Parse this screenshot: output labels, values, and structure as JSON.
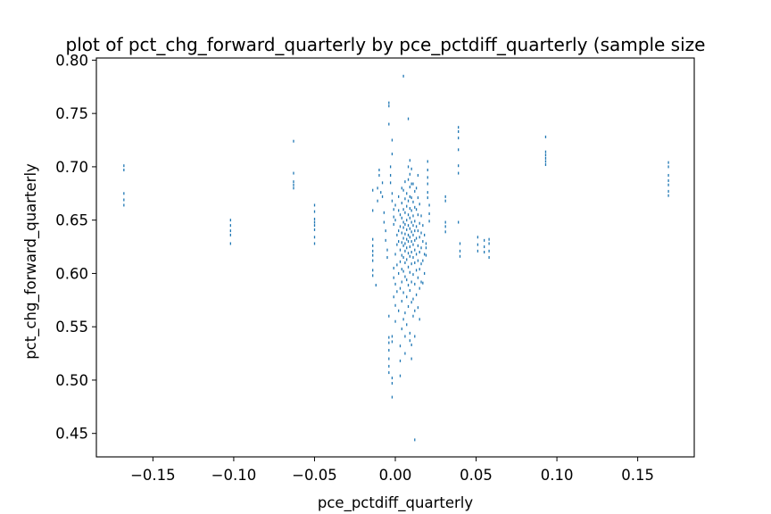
{
  "chart_data": {
    "type": "scatter",
    "title": "plot of pct_chg_forward_quarterly by pce_pctdiff_quarterly (sample size",
    "xlabel": "pce_pctdiff_quarterly",
    "ylabel": "pct_chg_forward_quarterly",
    "xlim": [
      -0.185,
      0.185
    ],
    "ylim": [
      0.428,
      0.802
    ],
    "x_ticks": [
      -0.15,
      -0.1,
      -0.05,
      0.0,
      0.05,
      0.1,
      0.15
    ],
    "x_tick_labels": [
      "−0.15",
      "−0.10",
      "−0.05",
      "0.00",
      "0.05",
      "0.10",
      "0.15"
    ],
    "y_ticks": [
      0.45,
      0.5,
      0.55,
      0.6,
      0.65,
      0.7,
      0.75,
      0.8
    ],
    "y_tick_labels": [
      "0.45",
      "0.50",
      "0.55",
      "0.60",
      "0.65",
      "0.70",
      "0.75",
      "0.80"
    ],
    "grid": false,
    "marker": "pixel",
    "color": "#1f77b4",
    "series": [
      {
        "points": [
          [
            -0.168,
            0.701
          ],
          [
            -0.168,
            0.697
          ],
          [
            -0.168,
            0.675
          ],
          [
            -0.168,
            0.669
          ],
          [
            -0.168,
            0.664
          ],
          [
            -0.102,
            0.65
          ],
          [
            -0.102,
            0.645
          ],
          [
            -0.102,
            0.64
          ],
          [
            -0.102,
            0.636
          ],
          [
            -0.102,
            0.628
          ],
          [
            -0.063,
            0.724
          ],
          [
            -0.063,
            0.694
          ],
          [
            -0.063,
            0.686
          ],
          [
            -0.063,
            0.683
          ],
          [
            -0.063,
            0.68
          ],
          [
            -0.05,
            0.664
          ],
          [
            -0.05,
            0.658
          ],
          [
            -0.05,
            0.651
          ],
          [
            -0.05,
            0.648
          ],
          [
            -0.05,
            0.645
          ],
          [
            -0.05,
            0.641
          ],
          [
            -0.05,
            0.634
          ],
          [
            -0.05,
            0.628
          ],
          [
            -0.014,
            0.678
          ],
          [
            -0.014,
            0.659
          ],
          [
            -0.014,
            0.632
          ],
          [
            -0.014,
            0.626
          ],
          [
            -0.014,
            0.621
          ],
          [
            -0.014,
            0.617
          ],
          [
            -0.014,
            0.612
          ],
          [
            -0.014,
            0.603
          ],
          [
            -0.014,
            0.598
          ],
          [
            -0.012,
            0.589
          ],
          [
            -0.011,
            0.668
          ],
          [
            -0.011,
            0.68
          ],
          [
            -0.01,
            0.692
          ],
          [
            -0.01,
            0.697
          ],
          [
            -0.009,
            0.676
          ],
          [
            -0.008,
            0.685
          ],
          [
            -0.008,
            0.672
          ],
          [
            -0.007,
            0.657
          ],
          [
            -0.007,
            0.648
          ],
          [
            -0.006,
            0.64
          ],
          [
            -0.006,
            0.631
          ],
          [
            -0.005,
            0.622
          ],
          [
            -0.005,
            0.615
          ],
          [
            -0.004,
            0.56
          ],
          [
            -0.004,
            0.54
          ],
          [
            -0.004,
            0.535
          ],
          [
            -0.004,
            0.528
          ],
          [
            -0.004,
            0.52
          ],
          [
            -0.004,
            0.513
          ],
          [
            -0.004,
            0.507
          ],
          [
            -0.004,
            0.74
          ],
          [
            -0.004,
            0.76
          ],
          [
            -0.004,
            0.757
          ],
          [
            -0.003,
            0.7
          ],
          [
            -0.003,
            0.692
          ],
          [
            -0.003,
            0.685
          ],
          [
            -0.002,
            0.668
          ],
          [
            -0.002,
            0.675
          ],
          [
            -0.002,
            0.712
          ],
          [
            -0.002,
            0.725
          ],
          [
            -0.002,
            0.502
          ],
          [
            -0.002,
            0.497
          ],
          [
            -0.002,
            0.484
          ],
          [
            -0.002,
            0.536
          ],
          [
            -0.002,
            0.541
          ],
          [
            -0.001,
            0.66
          ],
          [
            -0.001,
            0.653
          ],
          [
            -0.001,
            0.646
          ],
          [
            -0.001,
            0.605
          ],
          [
            -0.001,
            0.596
          ],
          [
            -0.001,
            0.578
          ],
          [
            0.0,
            0.618
          ],
          [
            0.0,
            0.65
          ],
          [
            0.0,
            0.664
          ],
          [
            0.0,
            0.59
          ],
          [
            0.0,
            0.57
          ],
          [
            0.0,
            0.555
          ],
          [
            0.001,
            0.636
          ],
          [
            0.001,
            0.627
          ],
          [
            0.001,
            0.608
          ],
          [
            0.001,
            0.583
          ],
          [
            0.002,
            0.672
          ],
          [
            0.002,
            0.659
          ],
          [
            0.002,
            0.64
          ],
          [
            0.002,
            0.63
          ],
          [
            0.002,
            0.6
          ],
          [
            0.002,
            0.565
          ],
          [
            0.003,
            0.655
          ],
          [
            0.003,
            0.644
          ],
          [
            0.003,
            0.622
          ],
          [
            0.003,
            0.611
          ],
          [
            0.003,
            0.586
          ],
          [
            0.003,
            0.532
          ],
          [
            0.003,
            0.518
          ],
          [
            0.003,
            0.504
          ],
          [
            0.004,
            0.68
          ],
          [
            0.004,
            0.666
          ],
          [
            0.004,
            0.652
          ],
          [
            0.004,
            0.638
          ],
          [
            0.004,
            0.629
          ],
          [
            0.004,
            0.617
          ],
          [
            0.004,
            0.604
          ],
          [
            0.004,
            0.592
          ],
          [
            0.004,
            0.574
          ],
          [
            0.004,
            0.548
          ],
          [
            0.005,
            0.678
          ],
          [
            0.005,
            0.66
          ],
          [
            0.005,
            0.648
          ],
          [
            0.005,
            0.643
          ],
          [
            0.005,
            0.633
          ],
          [
            0.005,
            0.626
          ],
          [
            0.005,
            0.615
          ],
          [
            0.005,
            0.602
          ],
          [
            0.005,
            0.582
          ],
          [
            0.005,
            0.557
          ],
          [
            0.005,
            0.785
          ],
          [
            0.006,
            0.686
          ],
          [
            0.006,
            0.67
          ],
          [
            0.006,
            0.657
          ],
          [
            0.006,
            0.646
          ],
          [
            0.006,
            0.637
          ],
          [
            0.006,
            0.628
          ],
          [
            0.006,
            0.621
          ],
          [
            0.006,
            0.61
          ],
          [
            0.006,
            0.597
          ],
          [
            0.006,
            0.563
          ],
          [
            0.006,
            0.541
          ],
          [
            0.006,
            0.525
          ],
          [
            0.007,
            0.675
          ],
          [
            0.007,
            0.663
          ],
          [
            0.007,
            0.65
          ],
          [
            0.007,
            0.641
          ],
          [
            0.007,
            0.632
          ],
          [
            0.007,
            0.624
          ],
          [
            0.007,
            0.613
          ],
          [
            0.007,
            0.594
          ],
          [
            0.007,
            0.578
          ],
          [
            0.007,
            0.552
          ],
          [
            0.008,
            0.7
          ],
          [
            0.008,
            0.688
          ],
          [
            0.008,
            0.668
          ],
          [
            0.008,
            0.655
          ],
          [
            0.008,
            0.645
          ],
          [
            0.008,
            0.636
          ],
          [
            0.008,
            0.63
          ],
          [
            0.008,
            0.619
          ],
          [
            0.008,
            0.606
          ],
          [
            0.008,
            0.589
          ],
          [
            0.008,
            0.569
          ],
          [
            0.008,
            0.745
          ],
          [
            0.009,
            0.706
          ],
          [
            0.009,
            0.693
          ],
          [
            0.009,
            0.681
          ],
          [
            0.009,
            0.672
          ],
          [
            0.009,
            0.661
          ],
          [
            0.009,
            0.652
          ],
          [
            0.009,
            0.642
          ],
          [
            0.009,
            0.634
          ],
          [
            0.009,
            0.625
          ],
          [
            0.009,
            0.616
          ],
          [
            0.009,
            0.601
          ],
          [
            0.009,
            0.584
          ],
          [
            0.009,
            0.544
          ],
          [
            0.009,
            0.537
          ],
          [
            0.01,
            0.698
          ],
          [
            0.01,
            0.684
          ],
          [
            0.01,
            0.671
          ],
          [
            0.01,
            0.659
          ],
          [
            0.01,
            0.648
          ],
          [
            0.01,
            0.639
          ],
          [
            0.01,
            0.63
          ],
          [
            0.01,
            0.62
          ],
          [
            0.01,
            0.609
          ],
          [
            0.01,
            0.592
          ],
          [
            0.01,
            0.573
          ],
          [
            0.01,
            0.533
          ],
          [
            0.01,
            0.52
          ],
          [
            0.011,
            0.684
          ],
          [
            0.011,
            0.667
          ],
          [
            0.011,
            0.654
          ],
          [
            0.011,
            0.645
          ],
          [
            0.011,
            0.636
          ],
          [
            0.011,
            0.627
          ],
          [
            0.011,
            0.615
          ],
          [
            0.011,
            0.599
          ],
          [
            0.011,
            0.576
          ],
          [
            0.011,
            0.56
          ],
          [
            0.012,
            0.677
          ],
          [
            0.012,
            0.662
          ],
          [
            0.012,
            0.649
          ],
          [
            0.012,
            0.64
          ],
          [
            0.012,
            0.631
          ],
          [
            0.012,
            0.622
          ],
          [
            0.012,
            0.61
          ],
          [
            0.012,
            0.59
          ],
          [
            0.012,
            0.565
          ],
          [
            0.012,
            0.541
          ],
          [
            0.012,
            0.444
          ],
          [
            0.013,
            0.68
          ],
          [
            0.013,
            0.66
          ],
          [
            0.013,
            0.644
          ],
          [
            0.013,
            0.633
          ],
          [
            0.013,
            0.618
          ],
          [
            0.013,
            0.603
          ],
          [
            0.013,
            0.58
          ],
          [
            0.014,
            0.692
          ],
          [
            0.014,
            0.671
          ],
          [
            0.014,
            0.655
          ],
          [
            0.014,
            0.64
          ],
          [
            0.014,
            0.626
          ],
          [
            0.014,
            0.612
          ],
          [
            0.014,
            0.596
          ],
          [
            0.014,
            0.568
          ],
          [
            0.015,
            0.665
          ],
          [
            0.015,
            0.647
          ],
          [
            0.015,
            0.634
          ],
          [
            0.015,
            0.62
          ],
          [
            0.015,
            0.604
          ],
          [
            0.015,
            0.586
          ],
          [
            0.015,
            0.557
          ],
          [
            0.016,
            0.654
          ],
          [
            0.016,
            0.638
          ],
          [
            0.016,
            0.624
          ],
          [
            0.016,
            0.609
          ],
          [
            0.016,
            0.592
          ],
          [
            0.017,
            0.645
          ],
          [
            0.017,
            0.63
          ],
          [
            0.017,
            0.612
          ],
          [
            0.017,
            0.591
          ],
          [
            0.018,
            0.636
          ],
          [
            0.018,
            0.618
          ],
          [
            0.018,
            0.6
          ],
          [
            0.019,
            0.628
          ],
          [
            0.019,
            0.624
          ],
          [
            0.019,
            0.617
          ],
          [
            0.02,
            0.705
          ],
          [
            0.02,
            0.697
          ],
          [
            0.02,
            0.69
          ],
          [
            0.02,
            0.684
          ],
          [
            0.02,
            0.676
          ],
          [
            0.02,
            0.671
          ],
          [
            0.021,
            0.664
          ],
          [
            0.021,
            0.656
          ],
          [
            0.021,
            0.649
          ],
          [
            0.031,
            0.672
          ],
          [
            0.031,
            0.668
          ],
          [
            0.031,
            0.648
          ],
          [
            0.031,
            0.644
          ],
          [
            0.031,
            0.639
          ],
          [
            0.039,
            0.737
          ],
          [
            0.039,
            0.733
          ],
          [
            0.039,
            0.727
          ],
          [
            0.039,
            0.716
          ],
          [
            0.039,
            0.701
          ],
          [
            0.039,
            0.694
          ],
          [
            0.039,
            0.648
          ],
          [
            0.04,
            0.628
          ],
          [
            0.04,
            0.621
          ],
          [
            0.04,
            0.616
          ],
          [
            0.051,
            0.634
          ],
          [
            0.051,
            0.627
          ],
          [
            0.051,
            0.621
          ],
          [
            0.055,
            0.631
          ],
          [
            0.055,
            0.625
          ],
          [
            0.055,
            0.62
          ],
          [
            0.058,
            0.632
          ],
          [
            0.058,
            0.628
          ],
          [
            0.058,
            0.621
          ],
          [
            0.058,
            0.615
          ],
          [
            0.093,
            0.728
          ],
          [
            0.093,
            0.714
          ],
          [
            0.093,
            0.711
          ],
          [
            0.093,
            0.708
          ],
          [
            0.093,
            0.705
          ],
          [
            0.093,
            0.702
          ],
          [
            0.169,
            0.704
          ],
          [
            0.169,
            0.7
          ],
          [
            0.169,
            0.692
          ],
          [
            0.169,
            0.687
          ],
          [
            0.169,
            0.683
          ],
          [
            0.169,
            0.677
          ],
          [
            0.169,
            0.673
          ]
        ]
      }
    ]
  }
}
